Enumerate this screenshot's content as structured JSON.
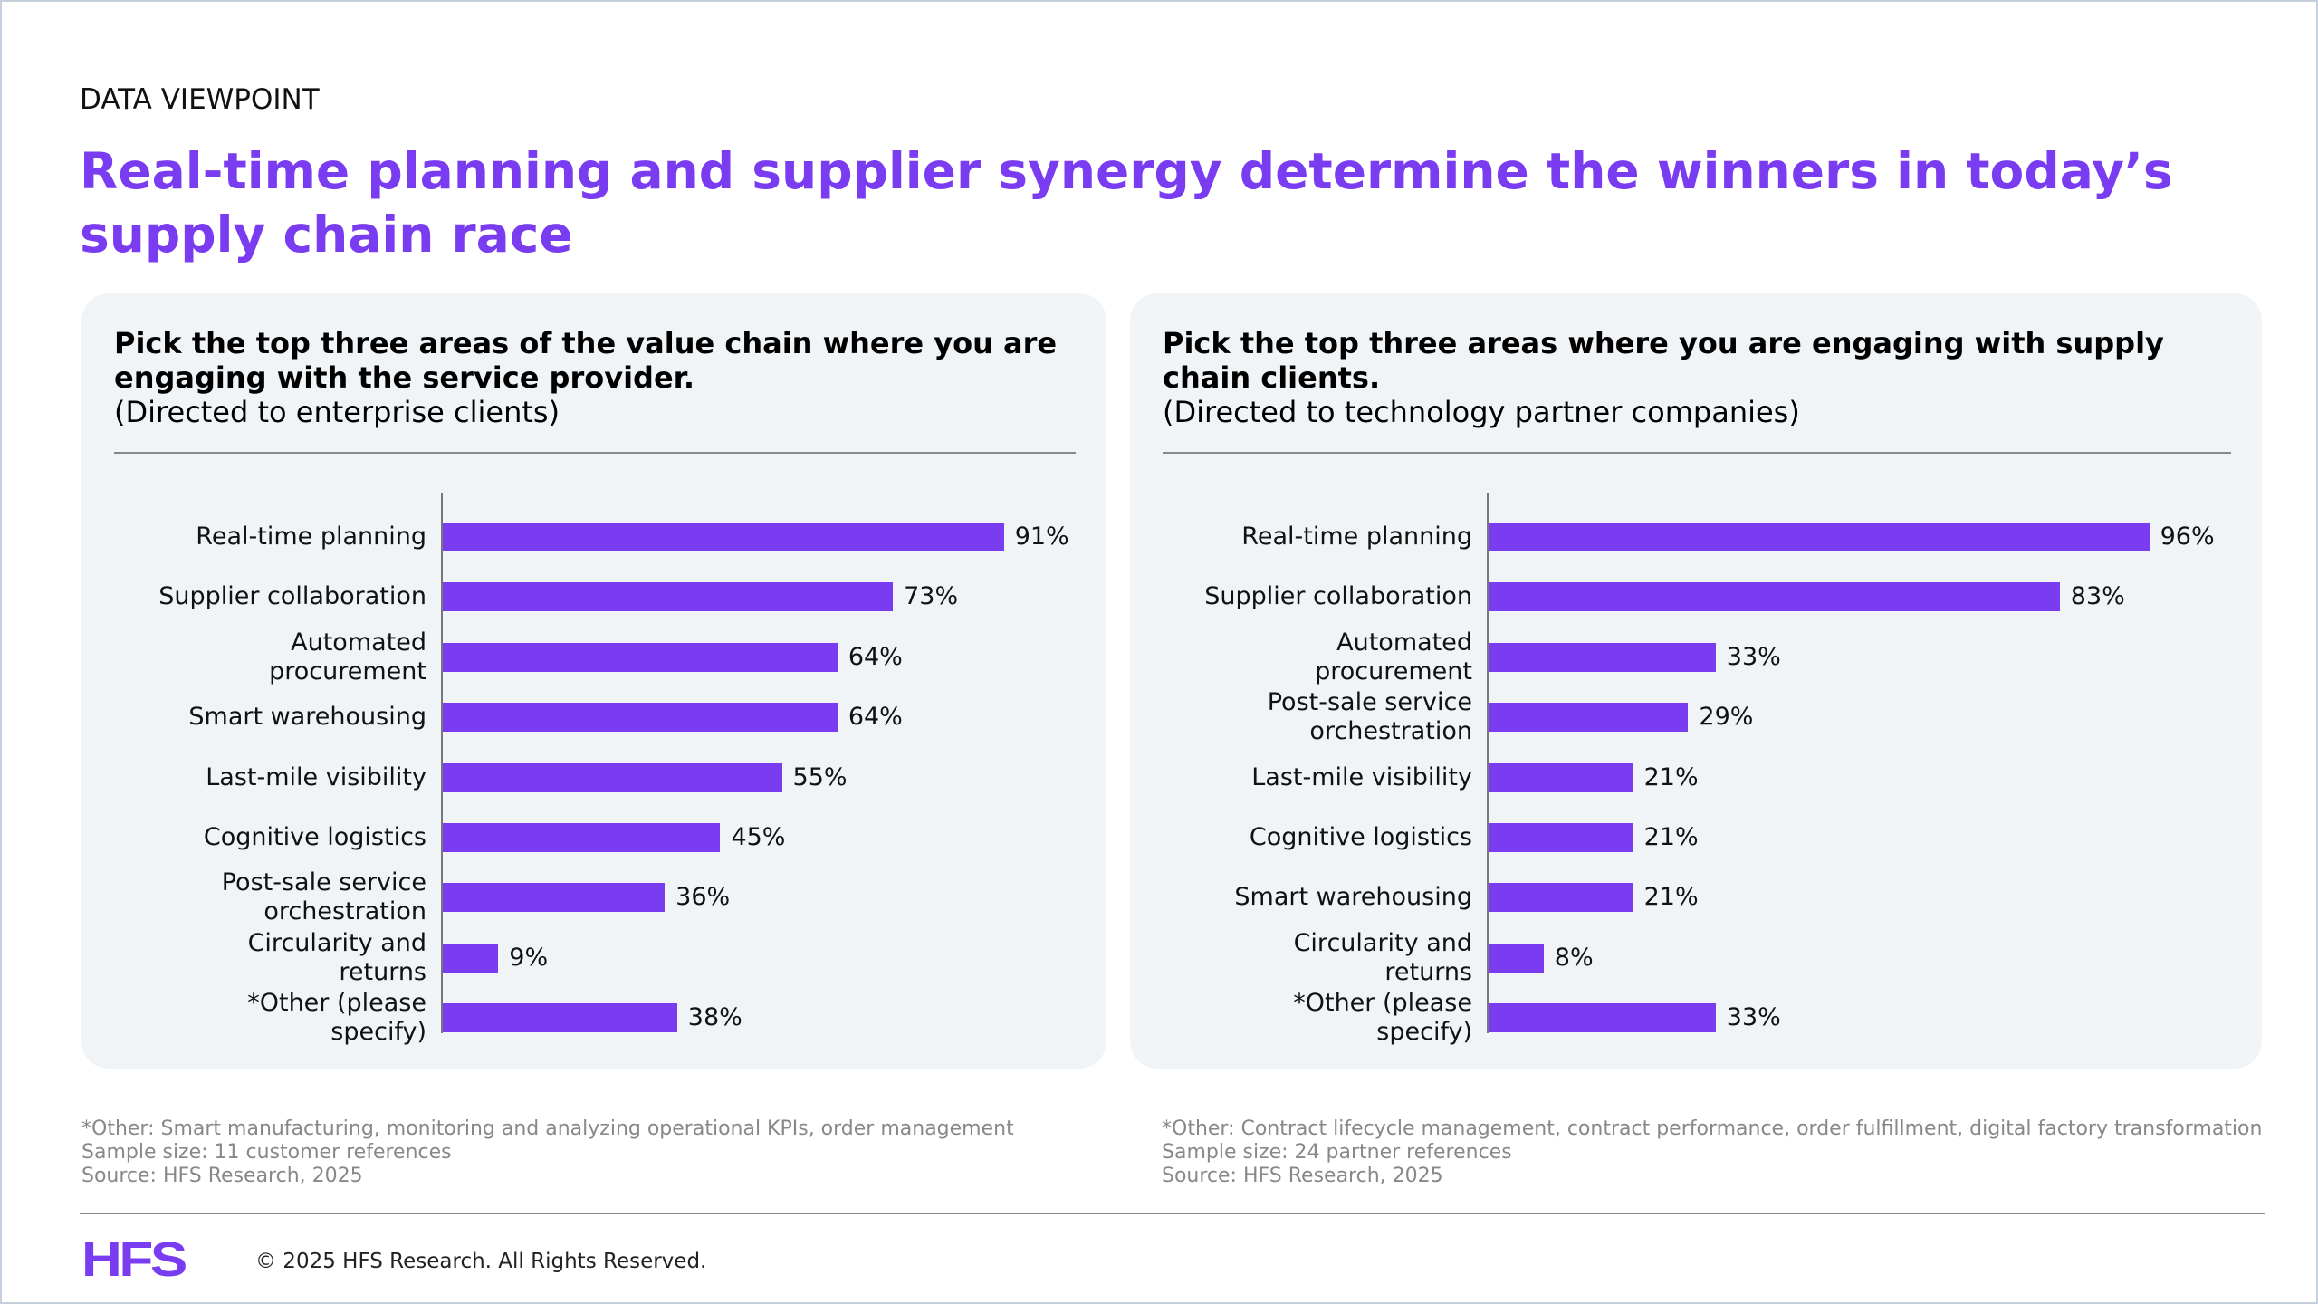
{
  "eyebrow": "DATA VIEWPOINT",
  "title": "Real-time planning and supplier synergy determine the winners in today’s supply chain race",
  "chart_data": [
    {
      "type": "bar",
      "orientation": "horizontal",
      "title": "Pick the top three areas of the value chain where you are engaging with the service provider.",
      "subtitle": "(Directed to enterprise clients)",
      "categories": [
        "Real-time planning",
        "Supplier collaboration",
        "Automated procurement",
        "Smart warehousing",
        "Last-mile visibility",
        "Cognitive logistics",
        "Post-sale service orchestration",
        "Circularity and returns",
        "*Other (please specify)"
      ],
      "values": [
        91,
        73,
        64,
        64,
        55,
        45,
        36,
        9,
        38
      ],
      "labels": [
        "91%",
        "73%",
        "64%",
        "64%",
        "55%",
        "45%",
        "36%",
        "9%",
        "38%"
      ],
      "unit": "%",
      "xlim": [
        0,
        100
      ]
    },
    {
      "type": "bar",
      "orientation": "horizontal",
      "title": "Pick the top three areas where you are engaging with supply chain clients.",
      "subtitle": "(Directed to technology partner companies)",
      "categories": [
        "Real-time planning",
        "Supplier collaboration",
        "Automated procurement",
        "Post-sale service orchestration",
        "Last-mile visibility",
        "Cognitive logistics",
        "Smart warehousing",
        "Circularity and returns",
        "*Other (please specify)"
      ],
      "values": [
        96,
        83,
        33,
        29,
        21,
        21,
        21,
        8,
        33
      ],
      "labels": [
        "96%",
        "83%",
        "33%",
        "29%",
        "21%",
        "21%",
        "21%",
        "8%",
        "33%"
      ],
      "unit": "%",
      "xlim": [
        0,
        100
      ]
    }
  ],
  "notes": [
    [
      "*Other: Smart manufacturing, monitoring and analyzing operational KPIs, order management",
      "Sample size: 11 customer references",
      "Source: HFS Research, 2025"
    ],
    [
      "*Other: Contract lifecycle management, contract performance, order fulfillment, digital factory transformation",
      "Sample size: 24 partner references",
      "Source: HFS Research, 2025"
    ]
  ],
  "footer": {
    "logo": "HFS",
    "copyright": "© 2025 HFS Research. All Rights Reserved."
  },
  "colors": {
    "accent": "#7a3cf0",
    "panel": "#f1f4f7"
  }
}
